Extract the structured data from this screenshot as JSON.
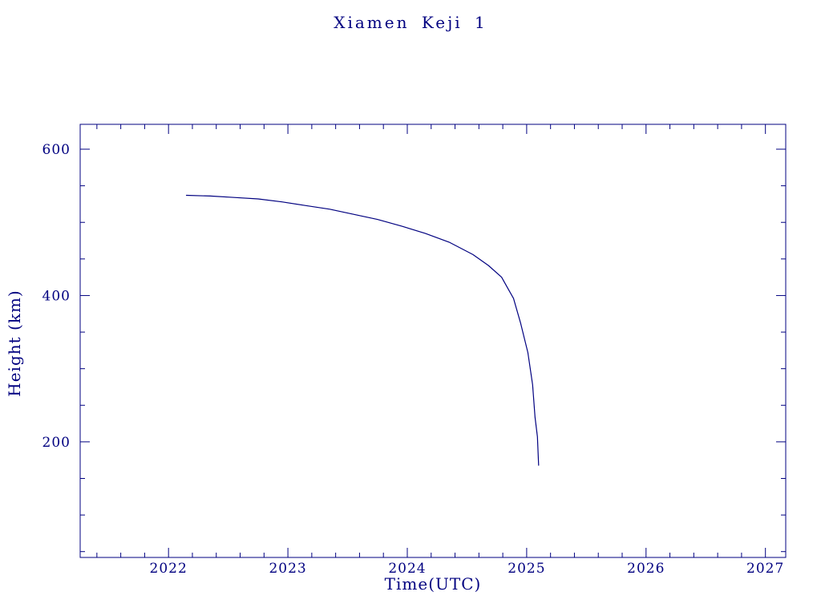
{
  "page": {
    "background": "#ffffff",
    "accent_color": "#000080"
  },
  "chart_data": {
    "type": "line",
    "title": "Xiamen Keji 1",
    "xlabel": "Time(UTC)",
    "ylabel": "Height (km)",
    "xlim": [
      2021.26,
      2027.17
    ],
    "ylim": [
      42,
      634
    ],
    "x_ticks": [
      2022,
      2023,
      2024,
      2025,
      2026,
      2027
    ],
    "y_ticks": [
      200,
      400,
      600
    ],
    "x_minor_step": 0.2,
    "y_minor_step": 50,
    "grid": false,
    "legend": null,
    "line_color": "#000080",
    "series": [
      {
        "name": "height",
        "points": [
          [
            2022.15,
            537
          ],
          [
            2022.35,
            536
          ],
          [
            2022.55,
            534
          ],
          [
            2022.75,
            532
          ],
          [
            2022.95,
            528
          ],
          [
            2023.15,
            523
          ],
          [
            2023.35,
            518
          ],
          [
            2023.55,
            511
          ],
          [
            2023.75,
            504
          ],
          [
            2023.95,
            495
          ],
          [
            2024.15,
            485
          ],
          [
            2024.35,
            473
          ],
          [
            2024.55,
            456
          ],
          [
            2024.68,
            441
          ],
          [
            2024.79,
            425
          ],
          [
            2024.89,
            396
          ],
          [
            2024.95,
            362
          ],
          [
            2025.01,
            322
          ],
          [
            2025.05,
            278
          ],
          [
            2025.07,
            234
          ],
          [
            2025.09,
            207
          ],
          [
            2025.1,
            168
          ]
        ]
      }
    ]
  }
}
